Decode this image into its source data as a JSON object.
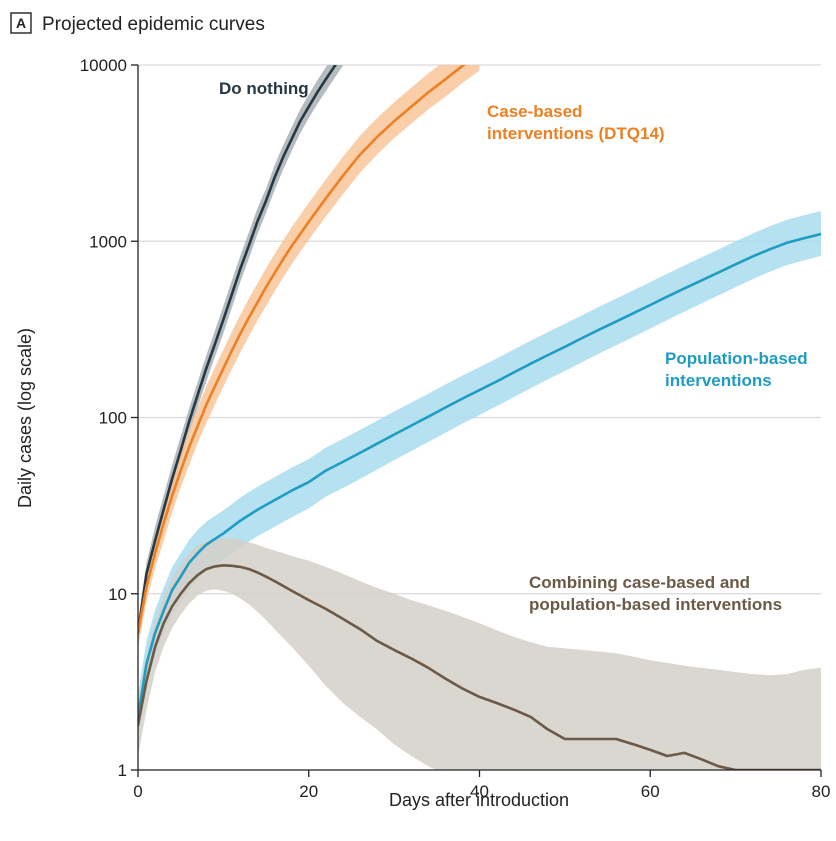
{
  "panel": {
    "letter": "A",
    "title": "Projected epidemic curves"
  },
  "chart_data": {
    "type": "line",
    "title": "Projected epidemic curves",
    "xlabel": "Days after introduction",
    "ylabel": "Daily cases (log scale)",
    "xlim": [
      0,
      80
    ],
    "ylim": [
      1,
      10000
    ],
    "yscale": "log",
    "x_ticks": [
      0,
      20,
      40,
      60,
      80
    ],
    "x_tick_labels": [
      "0",
      "20",
      "40",
      "60",
      "80"
    ],
    "y_ticks": [
      1,
      10,
      100,
      1000,
      10000
    ],
    "y_tick_labels": [
      "1",
      "10",
      "100",
      "1000",
      "10000"
    ],
    "grid": "horizontal",
    "legend": "none",
    "series": [
      {
        "name": "Do nothing",
        "label_lines": [
          "Do nothing"
        ],
        "color": "#243845",
        "band_color": "#a9b0b3",
        "x": [
          0,
          1,
          2,
          3,
          4,
          5,
          6,
          7,
          8,
          9,
          10,
          11,
          12,
          13,
          14,
          15,
          16,
          17,
          18,
          19,
          20,
          21,
          22,
          23,
          24,
          25
        ],
        "y": [
          6,
          13,
          20,
          30,
          45,
          65,
          95,
          135,
          190,
          260,
          360,
          500,
          700,
          950,
          1300,
          1700,
          2300,
          3000,
          3800,
          4800,
          5800,
          7000,
          8300,
          9800,
          11500,
          13500
        ],
        "lower": [
          5,
          11,
          17,
          25,
          38,
          55,
          80,
          115,
          160,
          220,
          300,
          420,
          590,
          800,
          1100,
          1450,
          1950,
          2550,
          3250,
          4100,
          5000,
          6000,
          7100,
          8400,
          9900,
          11600
        ],
        "upper": [
          7,
          15,
          24,
          36,
          54,
          78,
          113,
          160,
          225,
          310,
          430,
          600,
          830,
          1130,
          1540,
          2000,
          2700,
          3500,
          4450,
          5600,
          6800,
          8200,
          9700,
          11400,
          13400,
          15700
        ]
      },
      {
        "name": "Case-based interventions (DTQ14)",
        "label_lines": [
          "Case-based",
          "interventions (DTQ14)"
        ],
        "color": "#ee7f22",
        "band_color": "#f8c59a",
        "x": [
          0,
          1,
          2,
          3,
          4,
          5,
          6,
          7,
          8,
          9,
          10,
          11,
          12,
          13,
          14,
          15,
          16,
          17,
          18,
          19,
          20,
          22,
          24,
          26,
          28,
          30,
          32,
          34,
          36,
          38,
          40
        ],
        "y": [
          6,
          11,
          17,
          25,
          36,
          50,
          68,
          90,
          118,
          150,
          190,
          240,
          300,
          370,
          450,
          550,
          660,
          790,
          940,
          1100,
          1290,
          1750,
          2350,
          3100,
          3900,
          4800,
          5800,
          7000,
          8300,
          9900,
          11600
        ],
        "lower": [
          5,
          9,
          14,
          20,
          29,
          40,
          54,
          72,
          93,
          118,
          150,
          188,
          235,
          290,
          355,
          430,
          520,
          620,
          740,
          870,
          1020,
          1380,
          1850,
          2450,
          3100,
          3850,
          4650,
          5600,
          6600,
          7900,
          9300
        ],
        "upper": [
          7,
          13,
          21,
          31,
          45,
          63,
          86,
          114,
          150,
          192,
          243,
          307,
          384,
          475,
          578,
          705,
          845,
          1010,
          1200,
          1410,
          1650,
          2240,
          3010,
          3970,
          4990,
          6140,
          7420,
          8960,
          10600,
          12700,
          14800
        ]
      },
      {
        "name": "Population-based interventions",
        "label_lines": [
          "Population-based",
          "interventions"
        ],
        "color": "#1f9cc2",
        "band_color": "#a9dced",
        "x": [
          0,
          1,
          2,
          3,
          4,
          5,
          6,
          7,
          8,
          10,
          12,
          14,
          16,
          18,
          20,
          22,
          24,
          26,
          28,
          30,
          32,
          34,
          36,
          38,
          40,
          42,
          44,
          46,
          48,
          50,
          52,
          54,
          56,
          58,
          60,
          62,
          64,
          66,
          68,
          70,
          72,
          74,
          76,
          78,
          80
        ],
        "y": [
          2,
          4,
          6,
          8,
          10.5,
          12.5,
          15,
          17,
          19,
          22,
          26,
          30,
          34,
          38.5,
          43,
          50,
          56,
          63,
          71,
          80,
          90,
          101,
          114,
          128,
          143,
          160,
          180,
          202,
          226,
          252,
          282,
          315,
          350,
          390,
          435,
          485,
          540,
          600,
          665,
          740,
          820,
          900,
          980,
          1040,
          1100
        ],
        "lower": [
          1.5,
          3,
          4.5,
          6,
          7.6,
          9,
          10.7,
          12.1,
          13.5,
          15.6,
          18.4,
          21.2,
          24,
          27.2,
          30.5,
          35.5,
          39.8,
          44.8,
          50.6,
          57.2,
          64.5,
          72.6,
          82,
          92.3,
          103.3,
          115.7,
          130.4,
          146.6,
          164.4,
          183.6,
          205.8,
          230.3,
          256.5,
          286.3,
          319.9,
          357.2,
          398.5,
          443.7,
          492.9,
          549.5,
          610.1,
          671,
          732.5,
          778.9,
          825.5
        ],
        "upper": [
          2.7,
          5.4,
          8.1,
          10.8,
          14.2,
          16.9,
          20.3,
          23,
          25.7,
          29.7,
          35.1,
          40.5,
          45.9,
          52,
          58.1,
          67.5,
          75.6,
          85,
          95.9,
          108,
          121.5,
          136.4,
          153.9,
          172.8,
          193.1,
          216,
          243,
          272.7,
          305.1,
          340.2,
          380.7,
          425.3,
          472.5,
          526.5,
          587.3,
          654.8,
          729,
          810,
          897.8,
          999,
          1107,
          1215,
          1323,
          1404,
          1485
        ]
      },
      {
        "name": "Combining case-based and population-based interventions",
        "label_lines": [
          "Combining case-based and",
          "population-based interventions"
        ],
        "color": "#6b5a47",
        "band_color": "#d4cfc8",
        "x": [
          0,
          1,
          2,
          3,
          4,
          5,
          6,
          7,
          8,
          9,
          10,
          11,
          12,
          13,
          14,
          15,
          16,
          18,
          20,
          22,
          24,
          26,
          28,
          30,
          32,
          34,
          36,
          38,
          40,
          42,
          44,
          46,
          48,
          50,
          52,
          54,
          56,
          58,
          60,
          62,
          64,
          66,
          68,
          70,
          72,
          74,
          76,
          78,
          80
        ],
        "y": [
          1.8,
          3.2,
          5,
          6.8,
          8.5,
          10,
          11.5,
          12.8,
          13.8,
          14.3,
          14.5,
          14.4,
          14.2,
          13.8,
          13.2,
          12.5,
          11.8,
          10.4,
          9.2,
          8.2,
          7.2,
          6.3,
          5.4,
          4.8,
          4.3,
          3.8,
          3.3,
          2.9,
          2.6,
          2.4,
          2.2,
          2,
          1.7,
          1.5,
          1.5,
          1.5,
          1.5,
          1.4,
          1.3,
          1.2,
          1.25,
          1.15,
          1.05,
          1,
          1,
          1,
          1,
          1,
          1
        ],
        "lower": [
          1.2,
          2.2,
          3.6,
          5,
          6.4,
          7.6,
          8.8,
          9.8,
          10.4,
          10.6,
          10.4,
          10,
          9.4,
          8.7,
          7.9,
          7.1,
          6.3,
          5,
          3.9,
          3,
          2.4,
          2,
          1.7,
          1.4,
          1.2,
          1.05,
          0.95,
          0.9,
          0.85,
          0.85,
          0.85,
          0.85,
          0.85,
          0.85,
          0.85,
          0.85,
          0.85,
          0.85,
          0.85,
          0.85,
          0.85,
          0.85,
          0.85,
          0.85,
          0.85,
          0.85,
          0.85,
          0.85,
          0.85
        ],
        "upper": [
          2.5,
          4.5,
          7,
          9.6,
          12.2,
          14.6,
          17,
          18.8,
          20,
          20.6,
          20.8,
          20.6,
          20.2,
          19.6,
          19,
          18.2,
          17.6,
          16.4,
          15.4,
          14.2,
          13,
          11.8,
          10.8,
          10,
          9.2,
          8.6,
          8,
          7.4,
          6.8,
          6.2,
          5.7,
          5.3,
          5,
          4.9,
          4.8,
          4.7,
          4.6,
          4.4,
          4.2,
          4.05,
          3.9,
          3.8,
          3.7,
          3.6,
          3.5,
          3.45,
          3.5,
          3.7,
          3.8
        ]
      }
    ]
  }
}
